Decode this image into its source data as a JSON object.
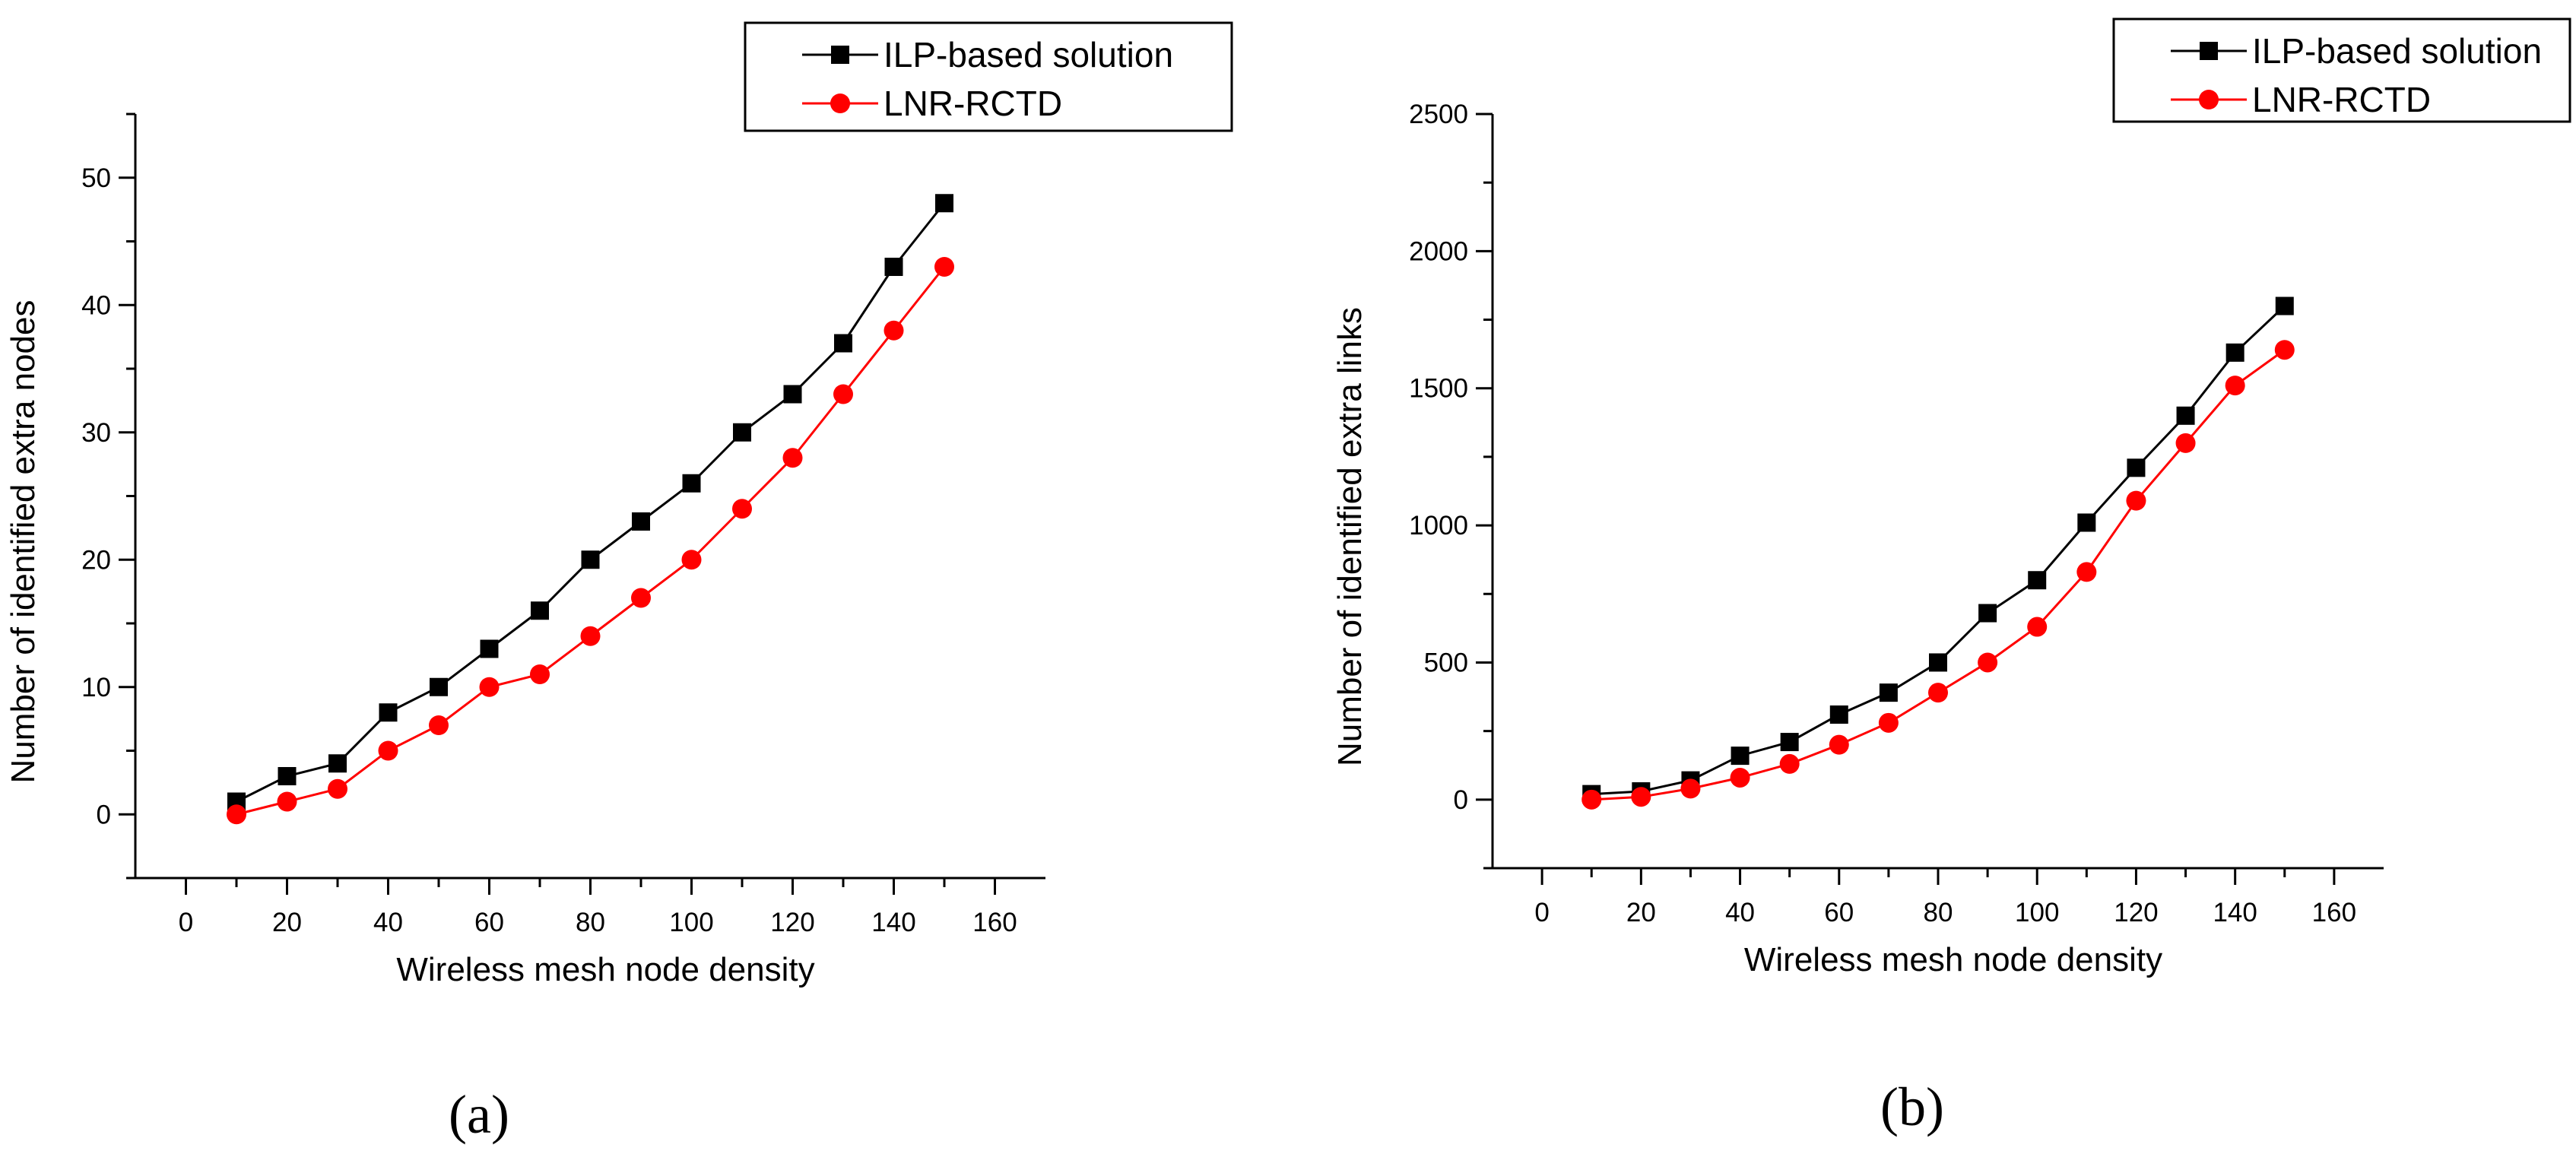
{
  "chart_data": [
    {
      "type": "line",
      "caption": "(a)",
      "title": "",
      "xlabel": "Wireless mesh node density",
      "ylabel": "Number of identified extra nodes",
      "xlim": [
        -10,
        170
      ],
      "ylim": [
        -5,
        55
      ],
      "xticks": [
        0,
        20,
        40,
        60,
        80,
        100,
        120,
        140,
        160
      ],
      "yticks": [
        0,
        10,
        20,
        30,
        40,
        50
      ],
      "legend_position": "top-right",
      "x": [
        10,
        20,
        30,
        40,
        50,
        60,
        70,
        80,
        90,
        100,
        110,
        120,
        130,
        140,
        150
      ],
      "series": [
        {
          "name": "ILP-based solution",
          "color": "#000000",
          "marker": "square",
          "values": [
            1,
            3,
            4,
            8,
            10,
            13,
            16,
            20,
            23,
            26,
            30,
            33,
            37,
            43,
            48
          ]
        },
        {
          "name": "LNR-RCTD",
          "color": "#ff0000",
          "marker": "circle",
          "values": [
            0,
            1,
            2,
            5,
            7,
            10,
            11,
            14,
            17,
            20,
            24,
            28,
            33,
            38,
            43
          ]
        }
      ]
    },
    {
      "type": "line",
      "caption": "(b)",
      "title": "",
      "xlabel": "Wireless mesh node density",
      "ylabel": "Number of identified extra links",
      "xlim": [
        -10,
        170
      ],
      "ylim": [
        -250,
        2500
      ],
      "xticks": [
        0,
        20,
        40,
        60,
        80,
        100,
        120,
        140,
        160
      ],
      "yticks": [
        0,
        500,
        1000,
        1500,
        2000,
        2500
      ],
      "legend_position": "top-right",
      "x": [
        10,
        20,
        30,
        40,
        50,
        60,
        70,
        80,
        90,
        100,
        110,
        120,
        130,
        140,
        150
      ],
      "series": [
        {
          "name": "ILP-based solution",
          "color": "#000000",
          "marker": "square",
          "values": [
            20,
            30,
            70,
            160,
            210,
            310,
            390,
            500,
            680,
            800,
            1010,
            1210,
            1400,
            1630,
            1800
          ]
        },
        {
          "name": "LNR-RCTD",
          "color": "#ff0000",
          "marker": "circle",
          "values": [
            0,
            10,
            40,
            80,
            130,
            200,
            280,
            390,
            500,
            630,
            830,
            1090,
            1300,
            1510,
            1640
          ]
        }
      ]
    }
  ]
}
